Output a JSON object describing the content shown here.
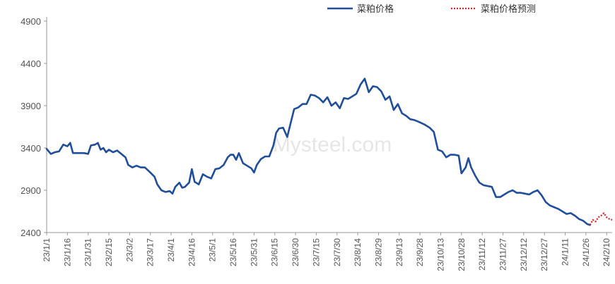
{
  "chart_data": {
    "type": "line",
    "title": "",
    "xlabel": "",
    "ylabel": "",
    "ylim": [
      2400,
      4900
    ],
    "yticks": [
      2400,
      2900,
      3400,
      3900,
      4400,
      4900
    ],
    "grid": false,
    "legend_position": "top-right",
    "watermark": "Mysteel.com",
    "x_tick_labels": [
      "23/1/1",
      "23/1/16",
      "23/1/31",
      "23/2/15",
      "23/3/2",
      "23/3/17",
      "23/4/1",
      "23/4/16",
      "23/5/1",
      "23/5/16",
      "23/5/31",
      "23/6/15",
      "23/6/30",
      "23/7/15",
      "23/7/30",
      "23/8/14",
      "23/8/29",
      "23/9/13",
      "23/9/28",
      "23/10/13",
      "23/10/28",
      "23/11/12",
      "23/11/27",
      "23/12/12",
      "23/12/27",
      "24/1/11",
      "24/1/26",
      "24/2/10"
    ],
    "series": [
      {
        "name": "菜粕价格",
        "color": "#1f4e9c",
        "style": "solid",
        "points": [
          [
            "23/1/1",
            3390
          ],
          [
            "23/1/4",
            3330
          ],
          [
            "23/1/7",
            3350
          ],
          [
            "23/1/10",
            3360
          ],
          [
            "23/1/13",
            3440
          ],
          [
            "23/1/16",
            3420
          ],
          [
            "23/1/18",
            3460
          ],
          [
            "23/1/20",
            3340
          ],
          [
            "23/1/24",
            3340
          ],
          [
            "23/1/28",
            3340
          ],
          [
            "23/1/31",
            3330
          ],
          [
            "23/2/2",
            3430
          ],
          [
            "23/2/5",
            3440
          ],
          [
            "23/2/7",
            3460
          ],
          [
            "23/2/9",
            3380
          ],
          [
            "23/2/11",
            3400
          ],
          [
            "23/2/13",
            3350
          ],
          [
            "23/2/15",
            3380
          ],
          [
            "23/2/18",
            3350
          ],
          [
            "23/2/21",
            3370
          ],
          [
            "23/2/24",
            3330
          ],
          [
            "23/2/27",
            3290
          ],
          [
            "23/3/1",
            3200
          ],
          [
            "23/3/4",
            3170
          ],
          [
            "23/3/7",
            3190
          ],
          [
            "23/3/10",
            3170
          ],
          [
            "23/3/13",
            3170
          ],
          [
            "23/3/17",
            3110
          ],
          [
            "23/3/20",
            3060
          ],
          [
            "23/3/22",
            2970
          ],
          [
            "23/3/25",
            2900
          ],
          [
            "23/3/28",
            2880
          ],
          [
            "23/3/31",
            2890
          ],
          [
            "23/4/2",
            2860
          ],
          [
            "23/4/4",
            2940
          ],
          [
            "23/4/7",
            2990
          ],
          [
            "23/4/9",
            2930
          ],
          [
            "23/4/11",
            2940
          ],
          [
            "23/4/14",
            2990
          ],
          [
            "23/4/16",
            3150
          ],
          [
            "23/4/18",
            3000
          ],
          [
            "23/4/21",
            2970
          ],
          [
            "23/4/24",
            3090
          ],
          [
            "23/4/27",
            3060
          ],
          [
            "23/4/30",
            3040
          ],
          [
            "23/5/3",
            3150
          ],
          [
            "23/5/6",
            3160
          ],
          [
            "23/5/9",
            3200
          ],
          [
            "23/5/12",
            3290
          ],
          [
            "23/5/14",
            3320
          ],
          [
            "23/5/16",
            3320
          ],
          [
            "23/5/18",
            3260
          ],
          [
            "23/5/20",
            3340
          ],
          [
            "23/5/23",
            3220
          ],
          [
            "23/5/26",
            3190
          ],
          [
            "23/5/29",
            3160
          ],
          [
            "23/5/31",
            3110
          ],
          [
            "23/6/2",
            3200
          ],
          [
            "23/6/5",
            3270
          ],
          [
            "23/6/8",
            3300
          ],
          [
            "23/6/11",
            3300
          ],
          [
            "23/6/14",
            3430
          ],
          [
            "23/6/16",
            3580
          ],
          [
            "23/6/18",
            3630
          ],
          [
            "23/6/21",
            3640
          ],
          [
            "23/6/24",
            3530
          ],
          [
            "23/6/27",
            3730
          ],
          [
            "23/6/29",
            3860
          ],
          [
            "23/7/2",
            3880
          ],
          [
            "23/7/5",
            3920
          ],
          [
            "23/7/8",
            3920
          ],
          [
            "23/7/11",
            4030
          ],
          [
            "23/7/14",
            4020
          ],
          [
            "23/7/17",
            3990
          ],
          [
            "23/7/20",
            3940
          ],
          [
            "23/7/23",
            4000
          ],
          [
            "23/7/26",
            3900
          ],
          [
            "23/7/29",
            3940
          ],
          [
            "23/8/1",
            3870
          ],
          [
            "23/8/4",
            3990
          ],
          [
            "23/8/7",
            3980
          ],
          [
            "23/8/10",
            4010
          ],
          [
            "23/8/13",
            4040
          ],
          [
            "23/8/16",
            4150
          ],
          [
            "23/8/19",
            4220
          ],
          [
            "23/8/22",
            4060
          ],
          [
            "23/8/25",
            4130
          ],
          [
            "23/8/28",
            4120
          ],
          [
            "23/8/31",
            4070
          ],
          [
            "23/9/3",
            3970
          ],
          [
            "23/9/6",
            4010
          ],
          [
            "23/9/9",
            3850
          ],
          [
            "23/9/12",
            3920
          ],
          [
            "23/9/15",
            3810
          ],
          [
            "23/9/18",
            3780
          ],
          [
            "23/9/21",
            3740
          ],
          [
            "23/9/24",
            3730
          ],
          [
            "23/9/27",
            3710
          ],
          [
            "23/10/1",
            3680
          ],
          [
            "23/10/5",
            3640
          ],
          [
            "23/10/8",
            3590
          ],
          [
            "23/10/11",
            3380
          ],
          [
            "23/10/14",
            3360
          ],
          [
            "23/10/17",
            3290
          ],
          [
            "23/10/20",
            3320
          ],
          [
            "23/10/23",
            3320
          ],
          [
            "23/10/26",
            3310
          ],
          [
            "23/10/28",
            3100
          ],
          [
            "23/10/31",
            3170
          ],
          [
            "23/11/2",
            3280
          ],
          [
            "23/11/4",
            3170
          ],
          [
            "23/11/7",
            3070
          ],
          [
            "23/11/10",
            2990
          ],
          [
            "23/11/13",
            2960
          ],
          [
            "23/11/16",
            2950
          ],
          [
            "23/11/19",
            2940
          ],
          [
            "23/11/22",
            2820
          ],
          [
            "23/11/25",
            2820
          ],
          [
            "23/11/28",
            2850
          ],
          [
            "23/12/1",
            2880
          ],
          [
            "23/12/4",
            2900
          ],
          [
            "23/12/7",
            2870
          ],
          [
            "23/12/10",
            2870
          ],
          [
            "23/12/13",
            2860
          ],
          [
            "23/12/16",
            2850
          ],
          [
            "23/12/19",
            2880
          ],
          [
            "23/12/22",
            2900
          ],
          [
            "23/12/25",
            2840
          ],
          [
            "23/12/28",
            2760
          ],
          [
            "23/12/31",
            2720
          ],
          [
            "24/1/3",
            2700
          ],
          [
            "24/1/6",
            2680
          ],
          [
            "24/1/9",
            2650
          ],
          [
            "24/1/12",
            2620
          ],
          [
            "24/1/15",
            2630
          ],
          [
            "24/1/18",
            2600
          ],
          [
            "24/1/21",
            2560
          ],
          [
            "24/1/24",
            2540
          ],
          [
            "24/1/27",
            2500
          ],
          [
            "24/1/29",
            2490
          ]
        ]
      },
      {
        "name": "菜粕价格预测",
        "color": "#e0202a",
        "style": "dotted",
        "points": [
          [
            "24/1/29",
            2490
          ],
          [
            "24/1/31",
            2550
          ],
          [
            "24/2/2",
            2530
          ],
          [
            "24/2/4",
            2580
          ],
          [
            "24/2/6",
            2600
          ],
          [
            "24/2/8",
            2630
          ],
          [
            "24/2/10",
            2580
          ],
          [
            "24/2/12",
            2560
          ],
          [
            "24/2/14",
            2550
          ]
        ]
      }
    ]
  }
}
